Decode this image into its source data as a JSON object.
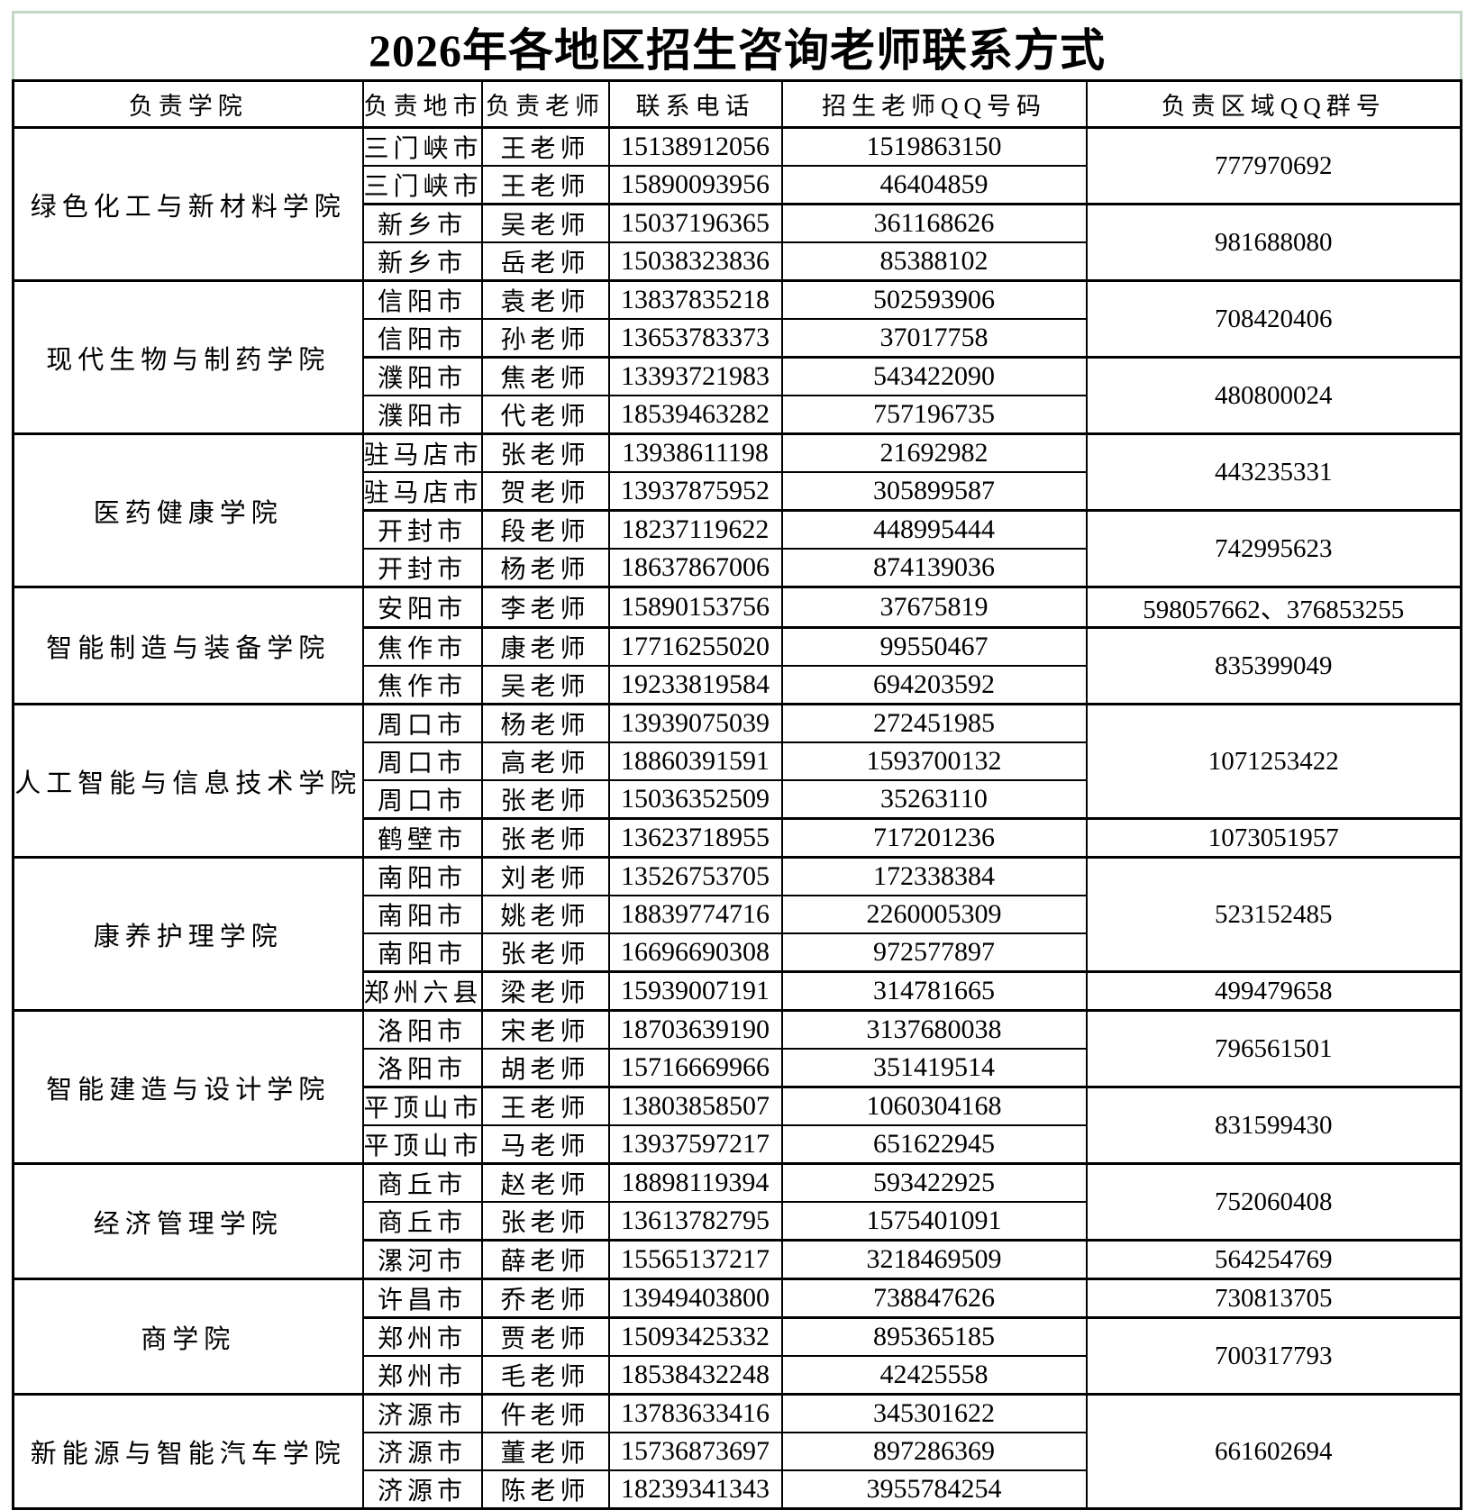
{
  "title": "2026年各地区招生咨询老师联系方式",
  "columns": [
    "负责学院",
    "负责地市",
    "负责老师",
    "联系电话",
    "招生老师QQ号码",
    "负责区域QQ群号"
  ],
  "colors": {
    "table_border": "#000000",
    "sheet_border": "#c3d8c4",
    "background": "#ffffff",
    "text": "#000000"
  },
  "colleges": [
    {
      "name": "绿色化工与新材料学院",
      "rows": [
        {
          "city": "三门峡市",
          "teacher": "王老师",
          "phone": "15138912056",
          "qq": "1519863150",
          "group": {
            "label": "777970692",
            "span": 2
          }
        },
        {
          "city": "三门峡市",
          "teacher": "王老师",
          "phone": "15890093956",
          "qq": "46404859"
        },
        {
          "city": "新乡市",
          "teacher": "吴老师",
          "phone": "15037196365",
          "qq": "361168626",
          "group": {
            "label": "981688080",
            "span": 2
          }
        },
        {
          "city": "新乡市",
          "teacher": "岳老师",
          "phone": "15038323836",
          "qq": "85388102"
        }
      ]
    },
    {
      "name": "现代生物与制药学院",
      "rows": [
        {
          "city": "信阳市",
          "teacher": "袁老师",
          "phone": "13837835218",
          "qq": "502593906",
          "group": {
            "label": "708420406",
            "span": 2
          }
        },
        {
          "city": "信阳市",
          "teacher": "孙老师",
          "phone": "13653783373",
          "qq": "37017758"
        },
        {
          "city": "濮阳市",
          "teacher": "焦老师",
          "phone": "13393721983",
          "qq": "543422090",
          "group": {
            "label": "480800024",
            "span": 2
          }
        },
        {
          "city": "濮阳市",
          "teacher": "代老师",
          "phone": "18539463282",
          "qq": "757196735"
        }
      ]
    },
    {
      "name": "医药健康学院",
      "rows": [
        {
          "city": "驻马店市",
          "teacher": "张老师",
          "phone": "13938611198",
          "qq": "21692982",
          "group": {
            "label": "443235331",
            "span": 2
          }
        },
        {
          "city": "驻马店市",
          "teacher": "贺老师",
          "phone": "13937875952",
          "qq": "305899587"
        },
        {
          "city": "开封市",
          "teacher": "段老师",
          "phone": "18237119622",
          "qq": "448995444",
          "group": {
            "label": "742995623",
            "span": 2
          }
        },
        {
          "city": "开封市",
          "teacher": "杨老师",
          "phone": "18637867006",
          "qq": "874139036"
        }
      ]
    },
    {
      "name": "智能制造与装备学院",
      "rows": [
        {
          "city": "安阳市",
          "teacher": "李老师",
          "phone": "15890153756",
          "qq": "37675819",
          "group": {
            "label": "598057662、376853255",
            "span": 1
          }
        },
        {
          "city": "焦作市",
          "teacher": "康老师",
          "phone": "17716255020",
          "qq": "99550467",
          "group": {
            "label": "835399049",
            "span": 2
          }
        },
        {
          "city": "焦作市",
          "teacher": "吴老师",
          "phone": "19233819584",
          "qq": "694203592"
        }
      ]
    },
    {
      "name": "人工智能与信息技术学院",
      "rows": [
        {
          "city": "周口市",
          "teacher": "杨老师",
          "phone": "13939075039",
          "qq": "272451985",
          "group": {
            "label": "1071253422",
            "span": 3
          }
        },
        {
          "city": "周口市",
          "teacher": "高老师",
          "phone": "18860391591",
          "qq": "1593700132"
        },
        {
          "city": "周口市",
          "teacher": "张老师",
          "phone": "15036352509",
          "qq": "35263110"
        },
        {
          "city": "鹤壁市",
          "teacher": "张老师",
          "phone": "13623718955",
          "qq": "717201236",
          "group": {
            "label": "1073051957",
            "span": 1
          }
        }
      ]
    },
    {
      "name": "康养护理学院",
      "rows": [
        {
          "city": "南阳市",
          "teacher": "刘老师",
          "phone": "13526753705",
          "qq": "172338384",
          "group": {
            "label": "523152485",
            "span": 3
          }
        },
        {
          "city": "南阳市",
          "teacher": "姚老师",
          "phone": "18839774716",
          "qq": "2260005309"
        },
        {
          "city": "南阳市",
          "teacher": "张老师",
          "phone": "16696690308",
          "qq": "972577897"
        },
        {
          "city": "郑州六县",
          "teacher": "梁老师",
          "phone": "15939007191",
          "qq": "314781665",
          "group": {
            "label": "499479658",
            "span": 1
          }
        }
      ]
    },
    {
      "name": "智能建造与设计学院",
      "rows": [
        {
          "city": "洛阳市",
          "teacher": "宋老师",
          "phone": "18703639190",
          "qq": "3137680038",
          "group": {
            "label": "796561501",
            "span": 2
          }
        },
        {
          "city": "洛阳市",
          "teacher": "胡老师",
          "phone": "15716669966",
          "qq": "351419514"
        },
        {
          "city": "平顶山市",
          "teacher": "王老师",
          "phone": "13803858507",
          "qq": "1060304168",
          "group": {
            "label": "831599430",
            "span": 2
          }
        },
        {
          "city": "平顶山市",
          "teacher": "马老师",
          "phone": "13937597217",
          "qq": "651622945"
        }
      ]
    },
    {
      "name": "经济管理学院",
      "rows": [
        {
          "city": "商丘市",
          "teacher": "赵老师",
          "phone": "18898119394",
          "qq": "593422925",
          "group": {
            "label": "752060408",
            "span": 2
          }
        },
        {
          "city": "商丘市",
          "teacher": "张老师",
          "phone": "13613782795",
          "qq": "1575401091"
        },
        {
          "city": "漯河市",
          "teacher": "薛老师",
          "phone": "15565137217",
          "qq": "3218469509",
          "group": {
            "label": "564254769",
            "span": 1
          }
        }
      ]
    },
    {
      "name": "商学院",
      "rows": [
        {
          "city": "许昌市",
          "teacher": "乔老师",
          "phone": "13949403800",
          "qq": "738847626",
          "group": {
            "label": "730813705",
            "span": 1
          }
        },
        {
          "city": "郑州市",
          "teacher": "贾老师",
          "phone": "15093425332",
          "qq": "895365185",
          "group": {
            "label": "700317793",
            "span": 2
          }
        },
        {
          "city": "郑州市",
          "teacher": "毛老师",
          "phone": "18538432248",
          "qq": "42425558"
        }
      ]
    },
    {
      "name": "新能源与智能汽车学院",
      "rows": [
        {
          "city": "济源市",
          "teacher": "仵老师",
          "phone": "13783633416",
          "qq": "345301622",
          "group": {
            "label": "661602694",
            "span": 3
          }
        },
        {
          "city": "济源市",
          "teacher": "董老师",
          "phone": "15736873697",
          "qq": "897286369"
        },
        {
          "city": "济源市",
          "teacher": "陈老师",
          "phone": "18239341343",
          "qq": "3955784254"
        }
      ]
    }
  ]
}
